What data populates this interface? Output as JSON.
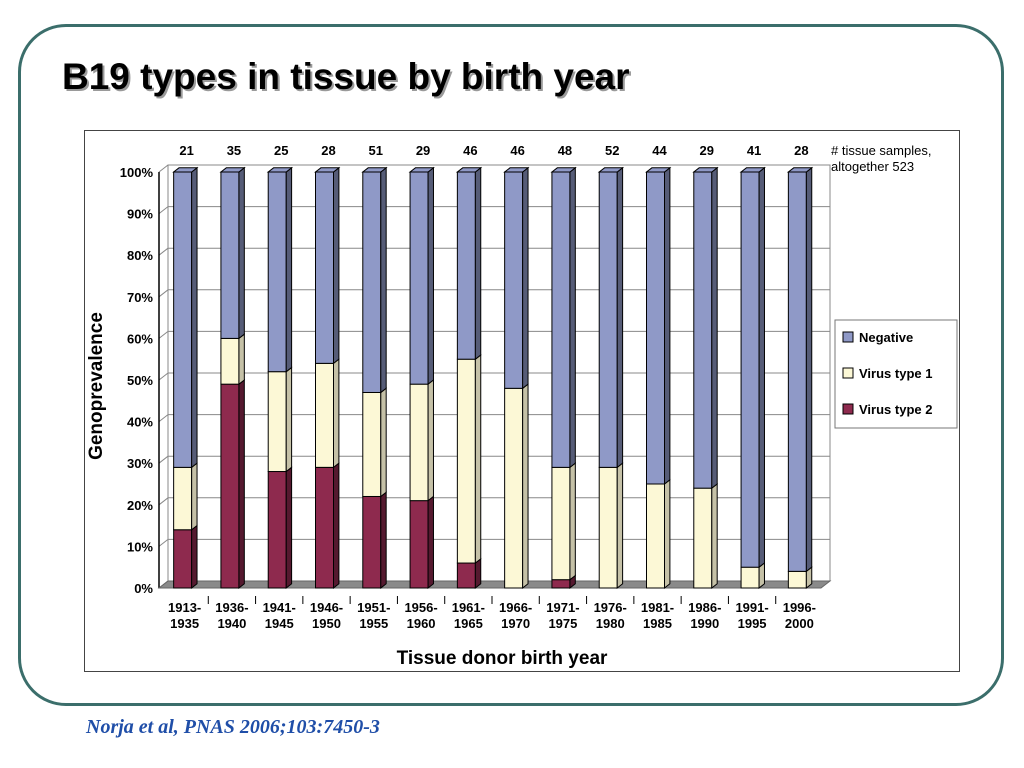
{
  "slide": {
    "title": "B19 types in tissue by birth year",
    "citation": "Norja et al, PNAS 2006;103:7450-3"
  },
  "colors": {
    "negative": "#8f99c7",
    "type1": "#fcf8d6",
    "type2": "#8e2a4e",
    "frame": "#3b6e6b",
    "citation": "#1f4ea8"
  },
  "chart_data": {
    "type": "bar",
    "stacked": true,
    "ylabel": "Genoprevalence",
    "xlabel": "Tissue donor birth year",
    "ylim": [
      0,
      100
    ],
    "yticks": [
      "0%",
      "10%",
      "20%",
      "30%",
      "40%",
      "50%",
      "60%",
      "70%",
      "80%",
      "90%",
      "100%"
    ],
    "grid": true,
    "legend_position": "right",
    "categories": [
      [
        "1913-",
        "1935"
      ],
      [
        "1936-",
        "1940"
      ],
      [
        "1941-",
        "1945"
      ],
      [
        "1946-",
        "1950"
      ],
      [
        "1951-",
        "1955"
      ],
      [
        "1956-",
        "1960"
      ],
      [
        "1961-",
        "1965"
      ],
      [
        "1966-",
        "1970"
      ],
      [
        "1971-",
        "1975"
      ],
      [
        "1976-",
        "1980"
      ],
      [
        "1981-",
        "1985"
      ],
      [
        "1986-",
        "1990"
      ],
      [
        "1991-",
        "1995"
      ],
      [
        "1996-",
        "2000"
      ]
    ],
    "sample_counts": [
      "21",
      "35",
      "25",
      "28",
      "51",
      "29",
      "46",
      "46",
      "48",
      "52",
      "44",
      "29",
      "41",
      "28"
    ],
    "counts_note": [
      "# tissue samples,",
      "altogether 523"
    ],
    "series": [
      {
        "name": "Virus type 2",
        "color_key": "type2",
        "values": [
          14,
          49,
          28,
          29,
          22,
          21,
          6,
          0,
          2,
          0,
          0,
          0,
          0,
          0
        ]
      },
      {
        "name": "Virus type 1",
        "color_key": "type1",
        "values": [
          15,
          11,
          24,
          25,
          25,
          28,
          49,
          48,
          27,
          29,
          25,
          24,
          5,
          4
        ]
      },
      {
        "name": "Negative",
        "color_key": "negative",
        "values": [
          71,
          40,
          48,
          46,
          53,
          51,
          45,
          52,
          71,
          71,
          75,
          76,
          95,
          96
        ]
      }
    ],
    "legend": [
      "Negative",
      "Virus type 1",
      "Virus type 2"
    ]
  }
}
